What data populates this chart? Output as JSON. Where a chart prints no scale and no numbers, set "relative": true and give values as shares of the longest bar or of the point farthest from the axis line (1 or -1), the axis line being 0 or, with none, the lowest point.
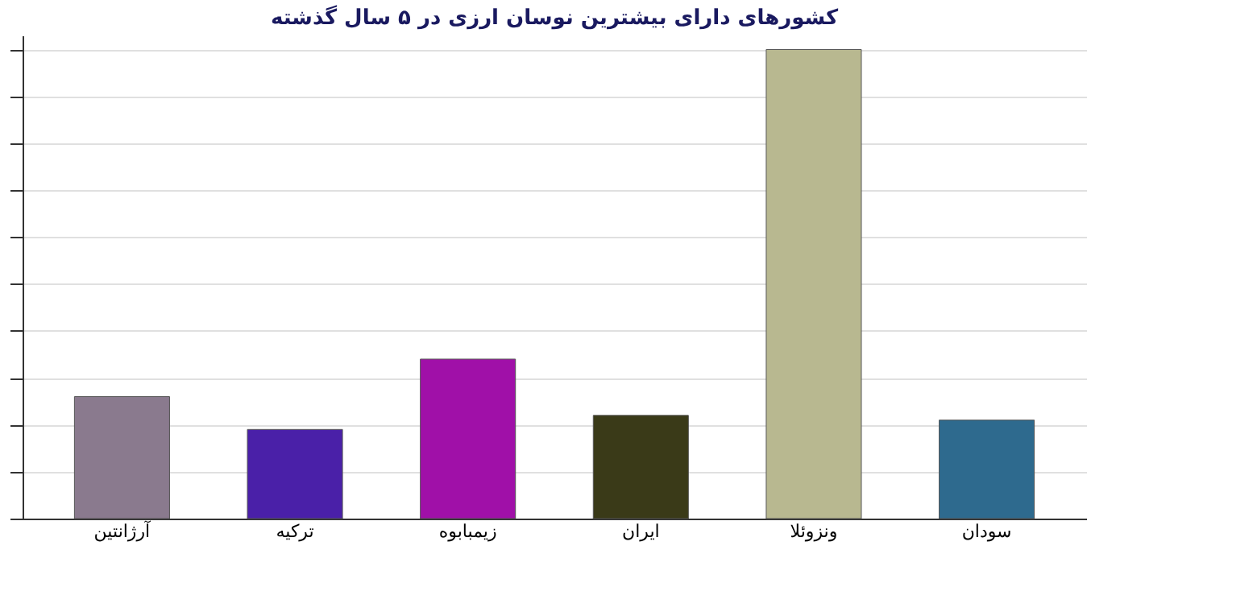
{
  "chart_data": {
    "type": "bar",
    "title": "کشورهای دارای بیشترین نوسان ارزی در ۵ سال گذشته",
    "categories": [
      "آرژانتین",
      "ترکیه",
      "زیمبابوه",
      "ایران",
      "ونزوئلا",
      "سودان"
    ],
    "values": [
      0.26,
      0.19,
      0.34,
      0.22,
      1,
      0.21
    ],
    "colors": [
      "#8a7a8e",
      "#4a20a8",
      "#a010a8",
      "#3a3a18",
      "#b8b890",
      "#2e6a8e"
    ],
    "relative": true,
    "grid": "y"
  }
}
